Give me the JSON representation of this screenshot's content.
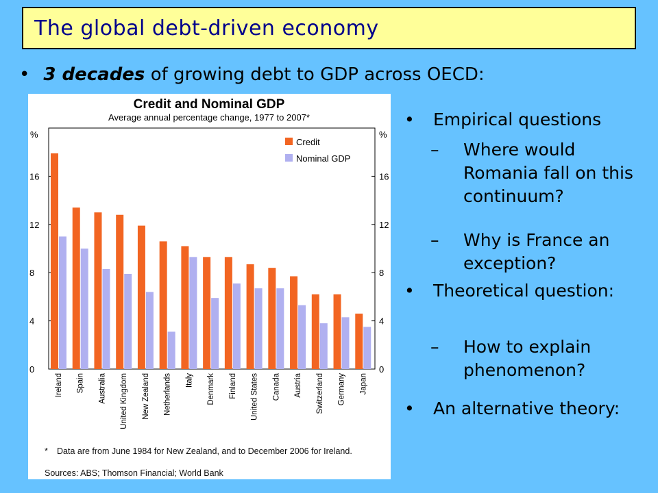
{
  "slide": {
    "title": "The global debt-driven economy",
    "bullet": {
      "emphasis": "3 decades",
      "text": "of growing debt to GDP across OECD:"
    },
    "right_items": [
      {
        "level": 1,
        "text": "Empirical questions"
      },
      {
        "level": 2,
        "text": "Where would Romania fall on this continuum?"
      },
      {
        "level": 2,
        "text": "Why is France an exception?"
      },
      {
        "level": 1,
        "text": "Theoretical question:"
      },
      {
        "level": 2,
        "text": "How to explain phenomenon?"
      },
      {
        "level": 1,
        "text": "An alternative theory:"
      }
    ],
    "chart_footer": {
      "note_marker": "*",
      "note": "Data are from June 1984 for New Zealand, and to December 2006 for Ireland.",
      "sources": "Sources: ABS; Thomson Financial; World Bank"
    }
  },
  "chart_data": {
    "type": "bar",
    "title": "Credit and Nominal GDP",
    "subtitle": "Average annual percentage change, 1977 to 2007*",
    "ylabel_left": "%",
    "ylabel_right": "%",
    "ylim": [
      0,
      20
    ],
    "yticks": [
      0,
      4,
      8,
      12,
      16
    ],
    "legend_position": "top-right",
    "categories": [
      "Ireland",
      "Spain",
      "Australia",
      "United Kingdom",
      "New Zealand",
      "Netherlands",
      "Italy",
      "Denmark",
      "Finland",
      "United States",
      "Canada",
      "Austria",
      "Switzerland",
      "Germany",
      "Japan"
    ],
    "series": [
      {
        "name": "Credit",
        "color": "#f26522",
        "values": [
          17.9,
          13.4,
          13.0,
          12.8,
          11.9,
          10.6,
          10.2,
          9.3,
          9.3,
          8.7,
          8.4,
          7.7,
          6.2,
          6.2,
          4.6
        ]
      },
      {
        "name": "Nominal GDP",
        "color": "#b0b0f0",
        "values": [
          11.0,
          10.0,
          8.3,
          7.9,
          6.4,
          3.1,
          9.3,
          5.9,
          7.1,
          6.7,
          6.7,
          5.3,
          3.8,
          4.3,
          3.5
        ]
      }
    ]
  }
}
